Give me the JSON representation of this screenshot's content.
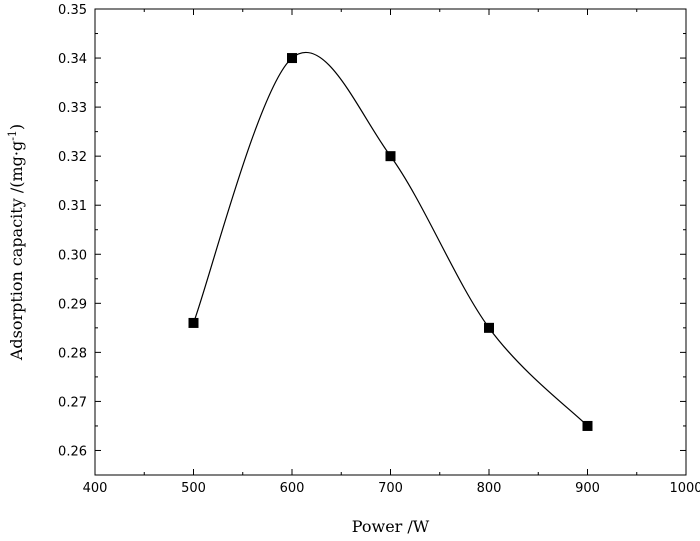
{
  "chart_data": {
    "type": "scatter",
    "xlabel": "Power /W",
    "ylabel": "Adsorption capacity /(mg·g",
    "ylabel_superscript": "-1",
    "ylabel_suffix": ")",
    "xlim": [
      400,
      1000
    ],
    "ylim": [
      0.255,
      0.35
    ],
    "x_ticks": [
      400,
      500,
      600,
      700,
      800,
      900,
      1000
    ],
    "x_tick_labels": [
      "400",
      "500",
      "600",
      "700",
      "800",
      "900",
      "1000"
    ],
    "y_ticks": [
      0.26,
      0.27,
      0.28,
      0.29,
      0.3,
      0.31,
      0.32,
      0.33,
      0.34,
      0.35
    ],
    "y_tick_labels": [
      "0.26",
      "0.27",
      "0.28",
      "0.29",
      "0.30",
      "0.31",
      "0.32",
      "0.33",
      "0.34",
      "0.35"
    ],
    "grid": false,
    "series": [
      {
        "marker": "square",
        "line": "smooth spline",
        "color": "#000000",
        "x": [
          500,
          600,
          700,
          800,
          900
        ],
        "y": [
          0.286,
          0.34,
          0.32,
          0.285,
          0.265
        ]
      }
    ]
  }
}
